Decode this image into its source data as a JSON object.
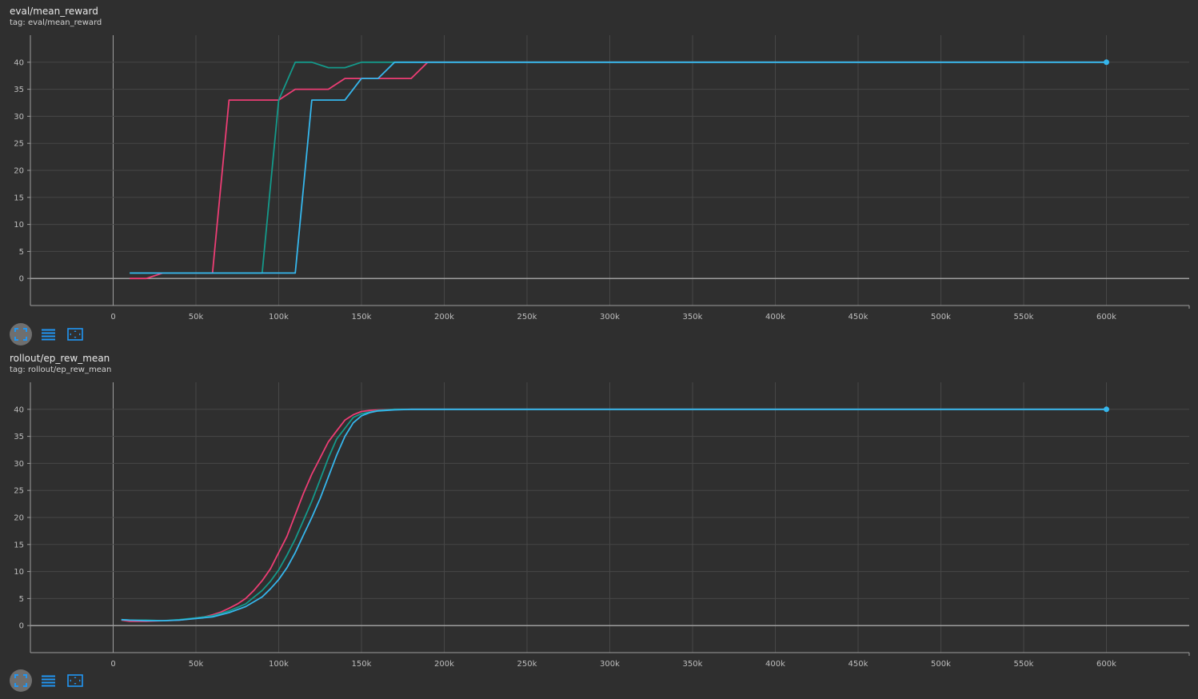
{
  "colors": {
    "background": "#2f2f2f",
    "grid": "#474747",
    "zero_line": "#9e9e9e",
    "run_pink": "#ec3d74",
    "run_teal": "#14998a",
    "run_blue": "#35b6ec",
    "toolbar_icon": "#2196f3"
  },
  "toolbar": {
    "icons": [
      "fit-domain-icon",
      "log-scale-icon",
      "toggle-y-axis-zoom-icon"
    ]
  },
  "chart_data": [
    {
      "type": "line",
      "title": "eval/mean_reward",
      "subtitle": "tag: eval/mean_reward",
      "xlim": [
        -50000,
        650000
      ],
      "ylim": [
        -5,
        45
      ],
      "xticks": [
        0,
        50000,
        100000,
        150000,
        200000,
        250000,
        300000,
        350000,
        400000,
        450000,
        500000,
        550000,
        600000
      ],
      "xtick_labels": [
        "0",
        "50k",
        "100k",
        "150k",
        "200k",
        "250k",
        "300k",
        "350k",
        "400k",
        "450k",
        "500k",
        "550k",
        "600k"
      ],
      "yticks": [
        0,
        5,
        10,
        15,
        20,
        25,
        30,
        35,
        40
      ],
      "ytick_labels": [
        "0",
        "5",
        "10",
        "15",
        "20",
        "25",
        "30",
        "35",
        "40"
      ],
      "grid": true,
      "series": [
        {
          "color": "#ec3d74",
          "x": [
            10000,
            20000,
            30000,
            40000,
            50000,
            60000,
            70000,
            80000,
            90000,
            100000,
            110000,
            120000,
            130000,
            140000,
            150000,
            160000,
            170000,
            180000,
            190000,
            600000
          ],
          "y": [
            0,
            0,
            1,
            1,
            1,
            1,
            33,
            33,
            33,
            33,
            35,
            35,
            35,
            37,
            37,
            37,
            37,
            37,
            40,
            40
          ]
        },
        {
          "color": "#14998a",
          "x": [
            10000,
            20000,
            30000,
            40000,
            50000,
            60000,
            70000,
            80000,
            90000,
            100000,
            110000,
            120000,
            130000,
            140000,
            150000,
            160000,
            170000,
            600000
          ],
          "y": [
            1,
            1,
            1,
            1,
            1,
            1,
            1,
            1,
            1,
            33,
            40,
            40,
            39,
            39,
            40,
            40,
            40,
            40
          ]
        },
        {
          "color": "#35b6ec",
          "x": [
            10000,
            20000,
            30000,
            40000,
            50000,
            60000,
            70000,
            80000,
            90000,
            100000,
            110000,
            120000,
            130000,
            140000,
            150000,
            160000,
            170000,
            600000
          ],
          "y": [
            1,
            1,
            1,
            1,
            1,
            1,
            1,
            1,
            1,
            1,
            1,
            33,
            33,
            33,
            37,
            37,
            40,
            40
          ],
          "end_marker": true
        }
      ]
    },
    {
      "type": "line",
      "title": "rollout/ep_rew_mean",
      "subtitle": "tag: rollout/ep_rew_mean",
      "xlim": [
        -50000,
        650000
      ],
      "ylim": [
        -5,
        45
      ],
      "xticks": [
        0,
        50000,
        100000,
        150000,
        200000,
        250000,
        300000,
        350000,
        400000,
        450000,
        500000,
        550000,
        600000
      ],
      "xtick_labels": [
        "0",
        "50k",
        "100k",
        "150k",
        "200k",
        "250k",
        "300k",
        "350k",
        "400k",
        "450k",
        "500k",
        "550k",
        "600k"
      ],
      "yticks": [
        0,
        5,
        10,
        15,
        20,
        25,
        30,
        35,
        40
      ],
      "ytick_labels": [
        "0",
        "5",
        "10",
        "15",
        "20",
        "25",
        "30",
        "35",
        "40"
      ],
      "grid": true,
      "series": [
        {
          "color": "#ec3d74",
          "x": [
            5000,
            10000,
            20000,
            30000,
            40000,
            45000,
            50000,
            55000,
            60000,
            65000,
            70000,
            75000,
            80000,
            85000,
            90000,
            95000,
            100000,
            105000,
            110000,
            115000,
            120000,
            125000,
            130000,
            135000,
            140000,
            145000,
            150000,
            155000,
            160000,
            170000,
            200000,
            300000,
            400000,
            500000,
            600000
          ],
          "y": [
            1.0,
            0.8,
            0.8,
            0.9,
            1.0,
            1.2,
            1.4,
            1.6,
            2.0,
            2.5,
            3.2,
            4.0,
            5.0,
            6.5,
            8.3,
            10.5,
            13.5,
            16.5,
            20.5,
            24.5,
            28.0,
            31.0,
            34.0,
            36.0,
            38.0,
            39.0,
            39.6,
            39.8,
            39.9,
            40,
            40,
            40,
            40,
            40,
            40
          ]
        },
        {
          "color": "#14998a",
          "x": [
            5000,
            10000,
            20000,
            30000,
            40000,
            50000,
            60000,
            70000,
            80000,
            90000,
            95000,
            100000,
            105000,
            110000,
            115000,
            120000,
            125000,
            130000,
            135000,
            140000,
            145000,
            150000,
            155000,
            160000,
            170000,
            200000,
            300000,
            400000,
            500000,
            600000
          ],
          "y": [
            1.1,
            1.0,
            1.0,
            0.9,
            1.1,
            1.4,
            1.8,
            2.7,
            4.0,
            6.5,
            8.2,
            10.3,
            13.0,
            16.0,
            19.5,
            23.0,
            27.0,
            31.0,
            34.5,
            36.5,
            38.5,
            39.2,
            39.5,
            39.8,
            40,
            40,
            40,
            40,
            40,
            40
          ]
        },
        {
          "color": "#35b6ec",
          "x": [
            5000,
            10000,
            20000,
            30000,
            40000,
            50000,
            60000,
            70000,
            80000,
            90000,
            95000,
            100000,
            105000,
            110000,
            115000,
            120000,
            125000,
            130000,
            135000,
            140000,
            145000,
            150000,
            155000,
            160000,
            170000,
            180000,
            200000,
            300000,
            400000,
            500000,
            600000
          ],
          "y": [
            1.1,
            1.0,
            0.9,
            0.9,
            1.0,
            1.3,
            1.6,
            2.4,
            3.5,
            5.3,
            6.8,
            8.5,
            10.7,
            13.5,
            16.8,
            20.0,
            23.5,
            27.5,
            31.5,
            35.0,
            37.5,
            38.8,
            39.4,
            39.7,
            39.9,
            40,
            40,
            40,
            40,
            40,
            40
          ],
          "end_marker": true
        }
      ]
    }
  ]
}
